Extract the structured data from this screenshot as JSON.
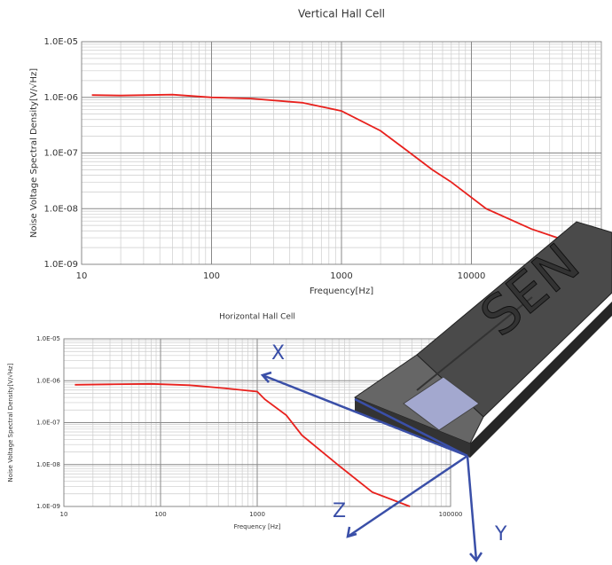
{
  "chart_data": [
    {
      "type": "line",
      "title": "Vertical Hall Cell",
      "x_label": "Frequency[Hz]",
      "y_label": "Noise Voltage Spectral Density[V/√Hz]",
      "log_x": true,
      "log_y": true,
      "grid": true,
      "minor_grid": true,
      "xlim": [
        10,
        100000
      ],
      "xticks": [
        10,
        100,
        1000,
        10000
      ],
      "ylim": [
        1e-09,
        1e-05
      ],
      "yticks": [
        {
          "value": 1e-09,
          "label": "1.0E-09"
        },
        {
          "value": 1e-08,
          "label": "1.0E-08"
        },
        {
          "value": 1e-07,
          "label": "1.0E-07"
        },
        {
          "value": 1e-06,
          "label": "1.0E-06"
        },
        {
          "value": 1e-05,
          "label": "1.0E-05"
        }
      ],
      "x": [
        12,
        20,
        50,
        100,
        200,
        500,
        1000,
        2000,
        3200,
        5000,
        7000,
        13000,
        29000,
        46000
      ],
      "series": [
        {
          "color": "#e8211d",
          "values": [
            1.1e-06,
            1.08e-06,
            1.12e-06,
            1e-06,
            9.5e-07,
            8e-07,
            5.7e-07,
            2.5e-07,
            1.1e-07,
            5e-08,
            3e-08,
            1e-08,
            4.3e-09,
            3e-09
          ]
        }
      ]
    },
    {
      "type": "line",
      "title": "Horizontal Hall Cell",
      "x_label": "Frequency [Hz]",
      "y_label": "Noise Voltage Spectral Density[V/√Hz]",
      "log_x": true,
      "log_y": true,
      "grid": true,
      "minor_grid": true,
      "xlim": [
        10,
        100000
      ],
      "xticks": [
        10,
        100,
        1000,
        100000
      ],
      "ylim": [
        1e-09,
        1e-05
      ],
      "yticks": [
        {
          "value": 1e-09,
          "label": "1.0E-09"
        },
        {
          "value": 1e-08,
          "label": "1.0E-08"
        },
        {
          "value": 1e-07,
          "label": "1.0E-07"
        },
        {
          "value": 1e-06,
          "label": "1.0E-06"
        },
        {
          "value": 1e-05,
          "label": "1.0E-05"
        }
      ],
      "x": [
        13,
        30,
        80,
        200,
        500,
        1000,
        1200,
        2000,
        2900,
        6800,
        15500,
        38000
      ],
      "series": [
        {
          "color": "#e8211d",
          "values": [
            8e-07,
            8.2e-07,
            8.4e-07,
            7.8e-07,
            6.5e-07,
            5.5e-07,
            3.6e-07,
            1.5e-07,
            5e-08,
            1e-08,
            2.2e-09,
            1e-09
          ]
        }
      ]
    }
  ],
  "figure": {
    "axes": [
      "X",
      "Y",
      "Z"
    ],
    "engraving": "SEN"
  }
}
